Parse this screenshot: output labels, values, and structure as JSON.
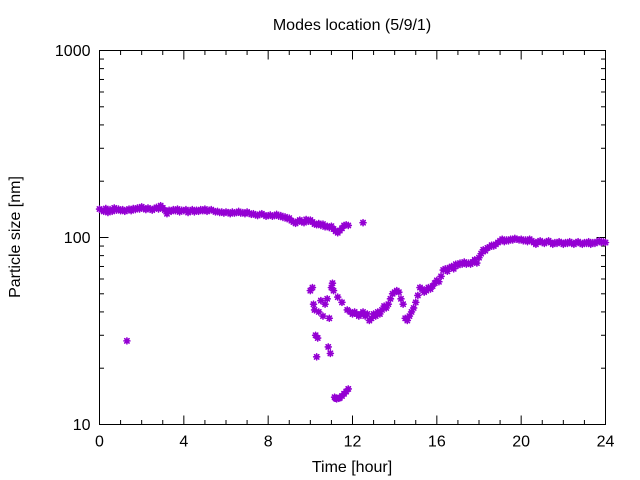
{
  "chart_data": {
    "type": "scatter",
    "title": "Modes location (5/9/1)",
    "xlabel": "Time [hour]",
    "ylabel": "Particle size [nm]",
    "xlim": [
      0,
      24
    ],
    "ylim": [
      10,
      1000
    ],
    "yscale": "log",
    "x_ticks": [
      0,
      4,
      8,
      12,
      16,
      20,
      24
    ],
    "x_tick_labels": [
      "0",
      "4",
      "8",
      "12",
      "16",
      "20",
      "24"
    ],
    "y_ticks": [
      10,
      100,
      1000
    ],
    "y_tick_labels": [
      "10",
      "100",
      "1000"
    ],
    "grid": false,
    "marker_color": "#9400d3",
    "series": [
      {
        "points": [
          [
            0.0,
            142
          ],
          [
            0.1,
            140
          ],
          [
            0.2,
            138
          ],
          [
            0.3,
            143
          ],
          [
            0.4,
            136
          ],
          [
            0.5,
            141
          ],
          [
            0.6,
            138
          ],
          [
            0.7,
            144
          ],
          [
            0.8,
            140
          ],
          [
            0.9,
            142
          ],
          [
            1.0,
            139
          ],
          [
            1.1,
            141
          ],
          [
            1.2,
            138
          ],
          [
            1.3,
            140
          ],
          [
            1.4,
            142
          ],
          [
            1.5,
            139
          ],
          [
            1.6,
            143
          ],
          [
            1.7,
            141
          ],
          [
            1.8,
            144
          ],
          [
            1.9,
            142
          ],
          [
            2.0,
            146
          ],
          [
            2.1,
            143
          ],
          [
            2.2,
            141
          ],
          [
            2.3,
            144
          ],
          [
            2.4,
            142
          ],
          [
            2.5,
            140
          ],
          [
            2.6,
            143
          ],
          [
            2.7,
            145
          ],
          [
            2.8,
            142
          ],
          [
            2.9,
            148
          ],
          [
            3.0,
            144
          ],
          [
            3.1,
            140
          ],
          [
            3.2,
            134
          ],
          [
            3.3,
            140
          ],
          [
            3.4,
            138
          ],
          [
            3.5,
            141
          ],
          [
            3.6,
            139
          ],
          [
            3.7,
            142
          ],
          [
            3.8,
            137
          ],
          [
            3.9,
            140
          ],
          [
            4.0,
            139
          ],
          [
            4.1,
            141
          ],
          [
            4.2,
            136
          ],
          [
            4.3,
            139
          ],
          [
            4.4,
            141
          ],
          [
            4.5,
            137
          ],
          [
            4.6,
            140
          ],
          [
            4.7,
            138
          ],
          [
            4.8,
            141
          ],
          [
            4.9,
            139
          ],
          [
            5.0,
            142
          ],
          [
            5.1,
            138
          ],
          [
            5.2,
            140
          ],
          [
            5.3,
            141
          ],
          [
            5.4,
            139
          ],
          [
            5.5,
            137
          ],
          [
            5.6,
            138
          ],
          [
            5.7,
            136
          ],
          [
            5.8,
            137
          ],
          [
            5.9,
            135
          ],
          [
            6.0,
            137
          ],
          [
            6.1,
            136
          ],
          [
            6.2,
            134
          ],
          [
            6.3,
            137
          ],
          [
            6.4,
            135
          ],
          [
            6.5,
            136
          ],
          [
            6.6,
            138
          ],
          [
            6.7,
            135
          ],
          [
            6.8,
            136
          ],
          [
            6.9,
            134
          ],
          [
            7.0,
            137
          ],
          [
            7.1,
            135
          ],
          [
            7.2,
            133
          ],
          [
            7.3,
            134
          ],
          [
            7.4,
            132
          ],
          [
            7.5,
            131
          ],
          [
            7.6,
            133
          ],
          [
            7.7,
            134
          ],
          [
            7.8,
            132
          ],
          [
            7.9,
            130
          ],
          [
            8.0,
            131
          ],
          [
            8.1,
            132
          ],
          [
            8.2,
            130
          ],
          [
            8.3,
            131
          ],
          [
            8.4,
            133
          ],
          [
            8.5,
            130
          ],
          [
            8.6,
            131
          ],
          [
            8.7,
            128
          ],
          [
            8.8,
            129
          ],
          [
            8.9,
            126
          ],
          [
            9.0,
            127
          ],
          [
            9.1,
            123
          ],
          [
            9.2,
            121
          ],
          [
            9.3,
            119
          ],
          [
            9.4,
            122
          ],
          [
            9.5,
            124
          ],
          [
            9.6,
            121
          ],
          [
            9.7,
            120
          ],
          [
            9.8,
            125
          ],
          [
            9.9,
            122
          ],
          [
            10.0,
            124
          ],
          [
            10.1,
            121
          ],
          [
            10.2,
            118
          ],
          [
            10.3,
            117
          ],
          [
            10.4,
            119
          ],
          [
            10.5,
            116
          ],
          [
            10.6,
            118
          ],
          [
            10.7,
            114
          ],
          [
            10.8,
            115
          ],
          [
            10.9,
            113
          ],
          [
            11.0,
            115
          ],
          [
            11.1,
            111
          ],
          [
            11.2,
            108
          ],
          [
            11.3,
            106
          ],
          [
            11.4,
            109
          ],
          [
            11.5,
            112
          ],
          [
            11.6,
            116
          ],
          [
            11.7,
            117
          ],
          [
            11.8,
            116
          ],
          [
            12.5,
            120
          ],
          [
            1.3,
            28
          ],
          [
            10.0,
            52
          ],
          [
            10.1,
            54
          ],
          [
            10.15,
            44
          ],
          [
            10.2,
            41
          ],
          [
            10.25,
            30
          ],
          [
            10.3,
            23
          ],
          [
            10.35,
            29
          ],
          [
            10.4,
            40
          ],
          [
            10.5,
            46
          ],
          [
            10.6,
            38
          ],
          [
            10.7,
            44
          ],
          [
            10.8,
            47
          ],
          [
            10.85,
            26
          ],
          [
            10.9,
            37
          ],
          [
            10.95,
            24
          ],
          [
            11.0,
            54
          ],
          [
            11.05,
            57
          ],
          [
            11.1,
            52
          ],
          [
            11.15,
            14
          ],
          [
            11.2,
            13.8
          ],
          [
            11.25,
            13.7
          ],
          [
            11.3,
            48
          ],
          [
            11.35,
            13.8
          ],
          [
            11.4,
            13.9
          ],
          [
            11.5,
            45
          ],
          [
            11.5,
            14.2
          ],
          [
            11.6,
            14.6
          ],
          [
            11.7,
            15
          ],
          [
            11.75,
            41
          ],
          [
            11.8,
            15.5
          ],
          [
            11.9,
            40
          ],
          [
            12.0,
            39
          ],
          [
            12.1,
            40
          ],
          [
            12.2,
            39
          ],
          [
            12.3,
            38
          ],
          [
            12.4,
            39
          ],
          [
            12.5,
            40
          ],
          [
            12.6,
            38
          ],
          [
            12.7,
            39
          ],
          [
            12.8,
            36
          ],
          [
            12.9,
            37
          ],
          [
            13.0,
            39
          ],
          [
            13.1,
            38
          ],
          [
            13.2,
            40
          ],
          [
            13.3,
            39
          ],
          [
            13.4,
            41
          ],
          [
            13.5,
            43
          ],
          [
            13.6,
            42
          ],
          [
            13.7,
            44
          ],
          [
            13.8,
            47
          ],
          [
            13.9,
            50
          ],
          [
            14.0,
            51
          ],
          [
            14.1,
            52
          ],
          [
            14.2,
            51
          ],
          [
            14.3,
            47
          ],
          [
            14.4,
            44
          ],
          [
            14.5,
            37
          ],
          [
            14.6,
            36
          ],
          [
            14.7,
            38
          ],
          [
            14.8,
            40
          ],
          [
            14.9,
            42
          ],
          [
            15.0,
            45
          ],
          [
            15.1,
            49
          ],
          [
            15.2,
            54
          ],
          [
            15.3,
            53
          ],
          [
            15.4,
            51
          ],
          [
            15.5,
            52
          ],
          [
            15.6,
            54
          ],
          [
            15.7,
            53
          ],
          [
            15.8,
            55
          ],
          [
            15.9,
            57
          ],
          [
            16.0,
            59
          ],
          [
            16.1,
            58
          ],
          [
            16.2,
            62
          ],
          [
            16.3,
            67
          ],
          [
            16.4,
            68
          ],
          [
            16.5,
            66
          ],
          [
            16.6,
            69
          ],
          [
            16.7,
            70
          ],
          [
            16.8,
            68
          ],
          [
            16.9,
            72
          ],
          [
            17.0,
            71
          ],
          [
            17.1,
            73
          ],
          [
            17.2,
            72
          ],
          [
            17.3,
            74
          ],
          [
            17.4,
            72
          ],
          [
            17.5,
            73
          ],
          [
            17.6,
            72
          ],
          [
            17.7,
            74
          ],
          [
            17.8,
            76
          ],
          [
            17.9,
            73
          ],
          [
            18.0,
            78
          ],
          [
            18.1,
            82
          ],
          [
            18.2,
            86
          ],
          [
            18.3,
            85
          ],
          [
            18.4,
            88
          ],
          [
            18.5,
            89
          ],
          [
            18.6,
            91
          ],
          [
            18.7,
            90
          ],
          [
            18.8,
            92
          ],
          [
            18.9,
            94
          ],
          [
            19.0,
            96
          ],
          [
            19.1,
            98
          ],
          [
            19.2,
            95
          ],
          [
            19.3,
            97
          ],
          [
            19.4,
            96
          ],
          [
            19.5,
            98
          ],
          [
            19.6,
            97
          ],
          [
            19.7,
            99
          ],
          [
            19.8,
            98
          ],
          [
            19.9,
            97
          ],
          [
            20.0,
            98
          ],
          [
            20.1,
            96
          ],
          [
            20.2,
            97
          ],
          [
            20.3,
            95
          ],
          [
            20.4,
            98
          ],
          [
            20.5,
            96
          ],
          [
            20.6,
            94
          ],
          [
            20.7,
            92
          ],
          [
            20.8,
            95
          ],
          [
            20.9,
            96
          ],
          [
            21.0,
            94
          ],
          [
            21.1,
            93
          ],
          [
            21.2,
            95
          ],
          [
            21.3,
            96
          ],
          [
            21.4,
            94
          ],
          [
            21.5,
            92
          ],
          [
            21.6,
            94
          ],
          [
            21.7,
            93
          ],
          [
            21.8,
            95
          ],
          [
            21.9,
            94
          ],
          [
            22.0,
            92
          ],
          [
            22.1,
            94
          ],
          [
            22.2,
            93
          ],
          [
            22.3,
            95
          ],
          [
            22.4,
            93
          ],
          [
            22.5,
            92
          ],
          [
            22.6,
            94
          ],
          [
            22.7,
            95
          ],
          [
            22.8,
            93
          ],
          [
            22.9,
            92
          ],
          [
            23.0,
            94
          ],
          [
            23.1,
            93
          ],
          [
            23.2,
            95
          ],
          [
            23.3,
            92
          ],
          [
            23.4,
            94
          ],
          [
            23.5,
            93
          ],
          [
            23.6,
            95
          ],
          [
            23.7,
            96
          ],
          [
            23.8,
            94
          ],
          [
            23.9,
            95
          ],
          [
            24.0,
            94
          ]
        ]
      }
    ]
  }
}
